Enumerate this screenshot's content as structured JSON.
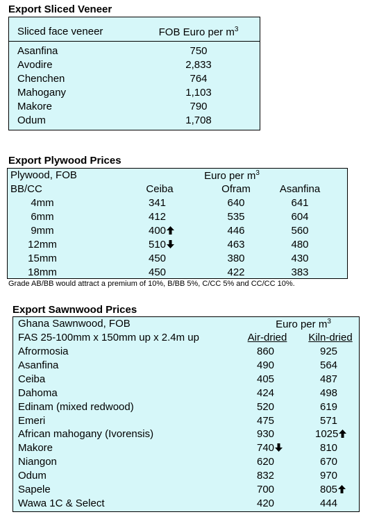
{
  "veneer": {
    "title": "Export Sliced Veneer",
    "col1": "Sliced face veneer",
    "col2": "FOB Euro per m",
    "col2_sup": "3",
    "rows": [
      {
        "name": "Asanfina",
        "price": "750"
      },
      {
        "name": "Avodire",
        "price": "2,833"
      },
      {
        "name": "Chenchen",
        "price": "764"
      },
      {
        "name": "Mahogany",
        "price": "1,103"
      },
      {
        "name": "Makore",
        "price": "790"
      },
      {
        "name": "Odum",
        "price": "1,708"
      }
    ]
  },
  "plywood": {
    "title": "Export Plywood Prices",
    "label1": "Plywood, FOB",
    "unit": "Euro per m",
    "unit_sup": "3",
    "label2": "BB/CC",
    "columns": [
      "Ceiba",
      "Ofram",
      "Asanfina"
    ],
    "rows": [
      {
        "size": "4mm",
        "ceiba": "341",
        "ofram": "640",
        "asanfina": "641",
        "arrow": ""
      },
      {
        "size": "6mm",
        "ceiba": "412",
        "ofram": "535",
        "asanfina": "604",
        "arrow": ""
      },
      {
        "size": "9mm",
        "ceiba": "400",
        "ofram": "446",
        "asanfina": "560",
        "arrow": "up"
      },
      {
        "size": "12mm",
        "ceiba": "510",
        "ofram": "463",
        "asanfina": "480",
        "arrow": "down"
      },
      {
        "size": "15mm",
        "ceiba": "450",
        "ofram": "380",
        "asanfina": "430",
        "arrow": ""
      },
      {
        "size": "18mm",
        "ceiba": "450",
        "ofram": "422",
        "asanfina": "383",
        "arrow": ""
      }
    ],
    "note": "Grade AB/BB would attract a premium of 10%, B/BB 5%, C/CC 5% and CC/CC 10%."
  },
  "sawnwood": {
    "title": "Export Sawnwood Prices",
    "label1": "Ghana Sawnwood, FOB",
    "unit": "Euro per m",
    "unit_sup": "3",
    "label2": "FAS 25-100mm x 150mm up x 2.4m up",
    "col_air": "Air-dried",
    "col_kiln": "Kiln-dried",
    "rows": [
      {
        "name": "Afrormosia",
        "air": "860",
        "kiln": "925",
        "air_arrow": "",
        "kiln_arrow": ""
      },
      {
        "name": "Asanfina",
        "air": "490",
        "kiln": "564",
        "air_arrow": "",
        "kiln_arrow": ""
      },
      {
        "name": "Ceiba",
        "air": "405",
        "kiln": "487",
        "air_arrow": "",
        "kiln_arrow": ""
      },
      {
        "name": "Dahoma",
        "air": "424",
        "kiln": "498",
        "air_arrow": "",
        "kiln_arrow": ""
      },
      {
        "name": "Edinam (mixed redwood)",
        "air": "520",
        "kiln": "619",
        "air_arrow": "",
        "kiln_arrow": ""
      },
      {
        "name": "Emeri",
        "air": "475",
        "kiln": "571",
        "air_arrow": "",
        "kiln_arrow": ""
      },
      {
        "name": "African mahogany (Ivorensis)",
        "air": "930",
        "kiln": "1025",
        "air_arrow": "",
        "kiln_arrow": "up"
      },
      {
        "name": "Makore",
        "air": "740",
        "kiln": "810",
        "air_arrow": "down",
        "kiln_arrow": ""
      },
      {
        "name": "Niangon",
        "air": "620",
        "kiln": "670",
        "air_arrow": "",
        "kiln_arrow": ""
      },
      {
        "name": "Odum",
        "air": "832",
        "kiln": "970",
        "air_arrow": "",
        "kiln_arrow": ""
      },
      {
        "name": "Sapele",
        "air": "700",
        "kiln": "805",
        "air_arrow": "",
        "kiln_arrow": "up"
      },
      {
        "name": "Wawa 1C & Select",
        "air": "420",
        "kiln": "444",
        "air_arrow": "",
        "kiln_arrow": ""
      }
    ]
  }
}
